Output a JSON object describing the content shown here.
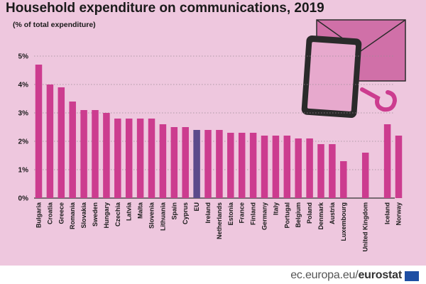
{
  "header": {
    "title": "Household expenditure on communications, 2019",
    "subtitle": "(% of total expenditure)"
  },
  "chart_data": {
    "type": "bar",
    "title": "Household expenditure on communications, 2019",
    "subtitle": "(% of total expenditure)",
    "xlabel": "",
    "ylabel": "",
    "ylim": [
      0,
      5
    ],
    "y_ticks": [
      "0%",
      "1%",
      "2%",
      "3%",
      "4%",
      "5%"
    ],
    "grid": "horizontal dotted",
    "legend": "none",
    "bar_color": "#cc3c8f",
    "highlight_color": "#5b4a8b",
    "highlight_category": "EU",
    "categories": [
      "Bulgaria",
      "Croatia",
      "Greece",
      "Romania",
      "Slovakia",
      "Sweden",
      "Hungary",
      "Czechia",
      "Latvia",
      "Malta",
      "Slovenia",
      "Lithuania",
      "Spain",
      "Cyprus",
      "EU",
      "Ireland",
      "Netherlands",
      "Estonia",
      "France",
      "Finland",
      "Germany",
      "Italy",
      "Portugal",
      "Belgium",
      "Poland",
      "Denmark",
      "Austria",
      "Luxembourg",
      "United Kingdom",
      "Iceland",
      "Norway"
    ],
    "values": [
      4.7,
      4.0,
      3.9,
      3.4,
      3.1,
      3.1,
      3.0,
      2.8,
      2.8,
      2.8,
      2.8,
      2.6,
      2.5,
      2.5,
      2.4,
      2.4,
      2.4,
      2.3,
      2.3,
      2.3,
      2.2,
      2.2,
      2.2,
      2.1,
      2.1,
      1.9,
      1.9,
      1.3,
      1.6,
      2.6,
      2.2
    ]
  },
  "illustration": {
    "icons": [
      "envelope-icon",
      "tablet-icon",
      "post-horn-icon"
    ],
    "colors": {
      "envelope": "#d070a8",
      "tablet_frame": "#2a2a2a",
      "tablet_screen": "#e7a9cd",
      "horn": "#cc3c8f"
    }
  },
  "footer": {
    "brand_prefix": "ec.europa.eu/",
    "brand_name": "eurostat",
    "flag_color": "#1f4fa3"
  }
}
